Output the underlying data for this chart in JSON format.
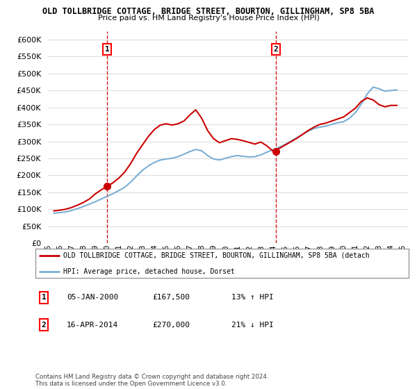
{
  "title": "OLD TOLLBRIDGE COTTAGE, BRIDGE STREET, BOURTON, GILLINGHAM, SP8 5BA",
  "subtitle": "Price paid vs. HM Land Registry's House Price Index (HPI)",
  "ylim": [
    0,
    625000
  ],
  "yticks": [
    0,
    50000,
    100000,
    150000,
    200000,
    250000,
    300000,
    350000,
    400000,
    450000,
    500000,
    550000,
    600000
  ],
  "sale1_date": "05-JAN-2000",
  "sale1_price": 167500,
  "sale1_label": "1",
  "sale1_hpi_diff": "13% ↑ HPI",
  "sale2_date": "16-APR-2014",
  "sale2_price": 270000,
  "sale2_label": "2",
  "sale2_hpi_diff": "21% ↓ HPI",
  "legend_line1": "OLD TOLLBRIDGE COTTAGE, BRIDGE STREET, BOURTON, GILLINGHAM, SP8 5BA (detach",
  "legend_line2": "HPI: Average price, detached house, Dorset",
  "footer": "Contains HM Land Registry data © Crown copyright and database right 2024.\nThis data is licensed under the Open Government Licence v3.0.",
  "sale1_x": 2000.01,
  "sale2_x": 2014.29,
  "hpi_color": "#7bafd4",
  "price_color": "#cc0000",
  "marker_color": "#cc0000",
  "grid_color": "#dddddd",
  "background_color": "#ffffff",
  "xlim_left": 1995.0,
  "xlim_right": 2025.5
}
